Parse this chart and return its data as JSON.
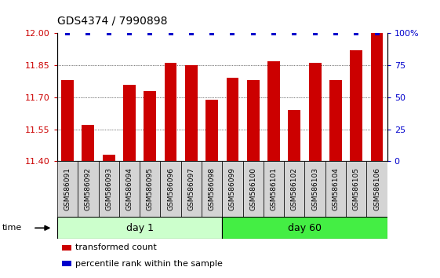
{
  "title": "GDS4374 / 7990898",
  "samples": [
    "GSM586091",
    "GSM586092",
    "GSM586093",
    "GSM586094",
    "GSM586095",
    "GSM586096",
    "GSM586097",
    "GSM586098",
    "GSM586099",
    "GSM586100",
    "GSM586101",
    "GSM586102",
    "GSM586103",
    "GSM586104",
    "GSM586105",
    "GSM586106"
  ],
  "red_values": [
    11.78,
    11.57,
    11.43,
    11.76,
    11.73,
    11.86,
    11.85,
    11.69,
    11.79,
    11.78,
    11.87,
    11.64,
    11.86,
    11.78,
    11.92,
    12.0
  ],
  "blue_values": [
    100,
    100,
    100,
    100,
    100,
    100,
    100,
    100,
    100,
    100,
    100,
    100,
    100,
    100,
    100,
    100
  ],
  "day1_count": 8,
  "day60_count": 8,
  "day1_label": "day 1",
  "day60_label": "day 60",
  "ylim_left": [
    11.4,
    12.0
  ],
  "ylim_right": [
    0,
    100
  ],
  "yticks_left": [
    11.4,
    11.55,
    11.7,
    11.85,
    12.0
  ],
  "yticks_right": [
    0,
    25,
    50,
    75,
    100
  ],
  "bar_color": "#cc0000",
  "dot_color": "#0000cc",
  "day1_bg": "#ccffcc",
  "day60_bg": "#44ee44",
  "xlabel_color": "#cc0000",
  "right_axis_color": "#0000cc",
  "bar_width": 0.6,
  "box_color": "#d4d4d4",
  "fig_width": 5.61,
  "fig_height": 3.54
}
